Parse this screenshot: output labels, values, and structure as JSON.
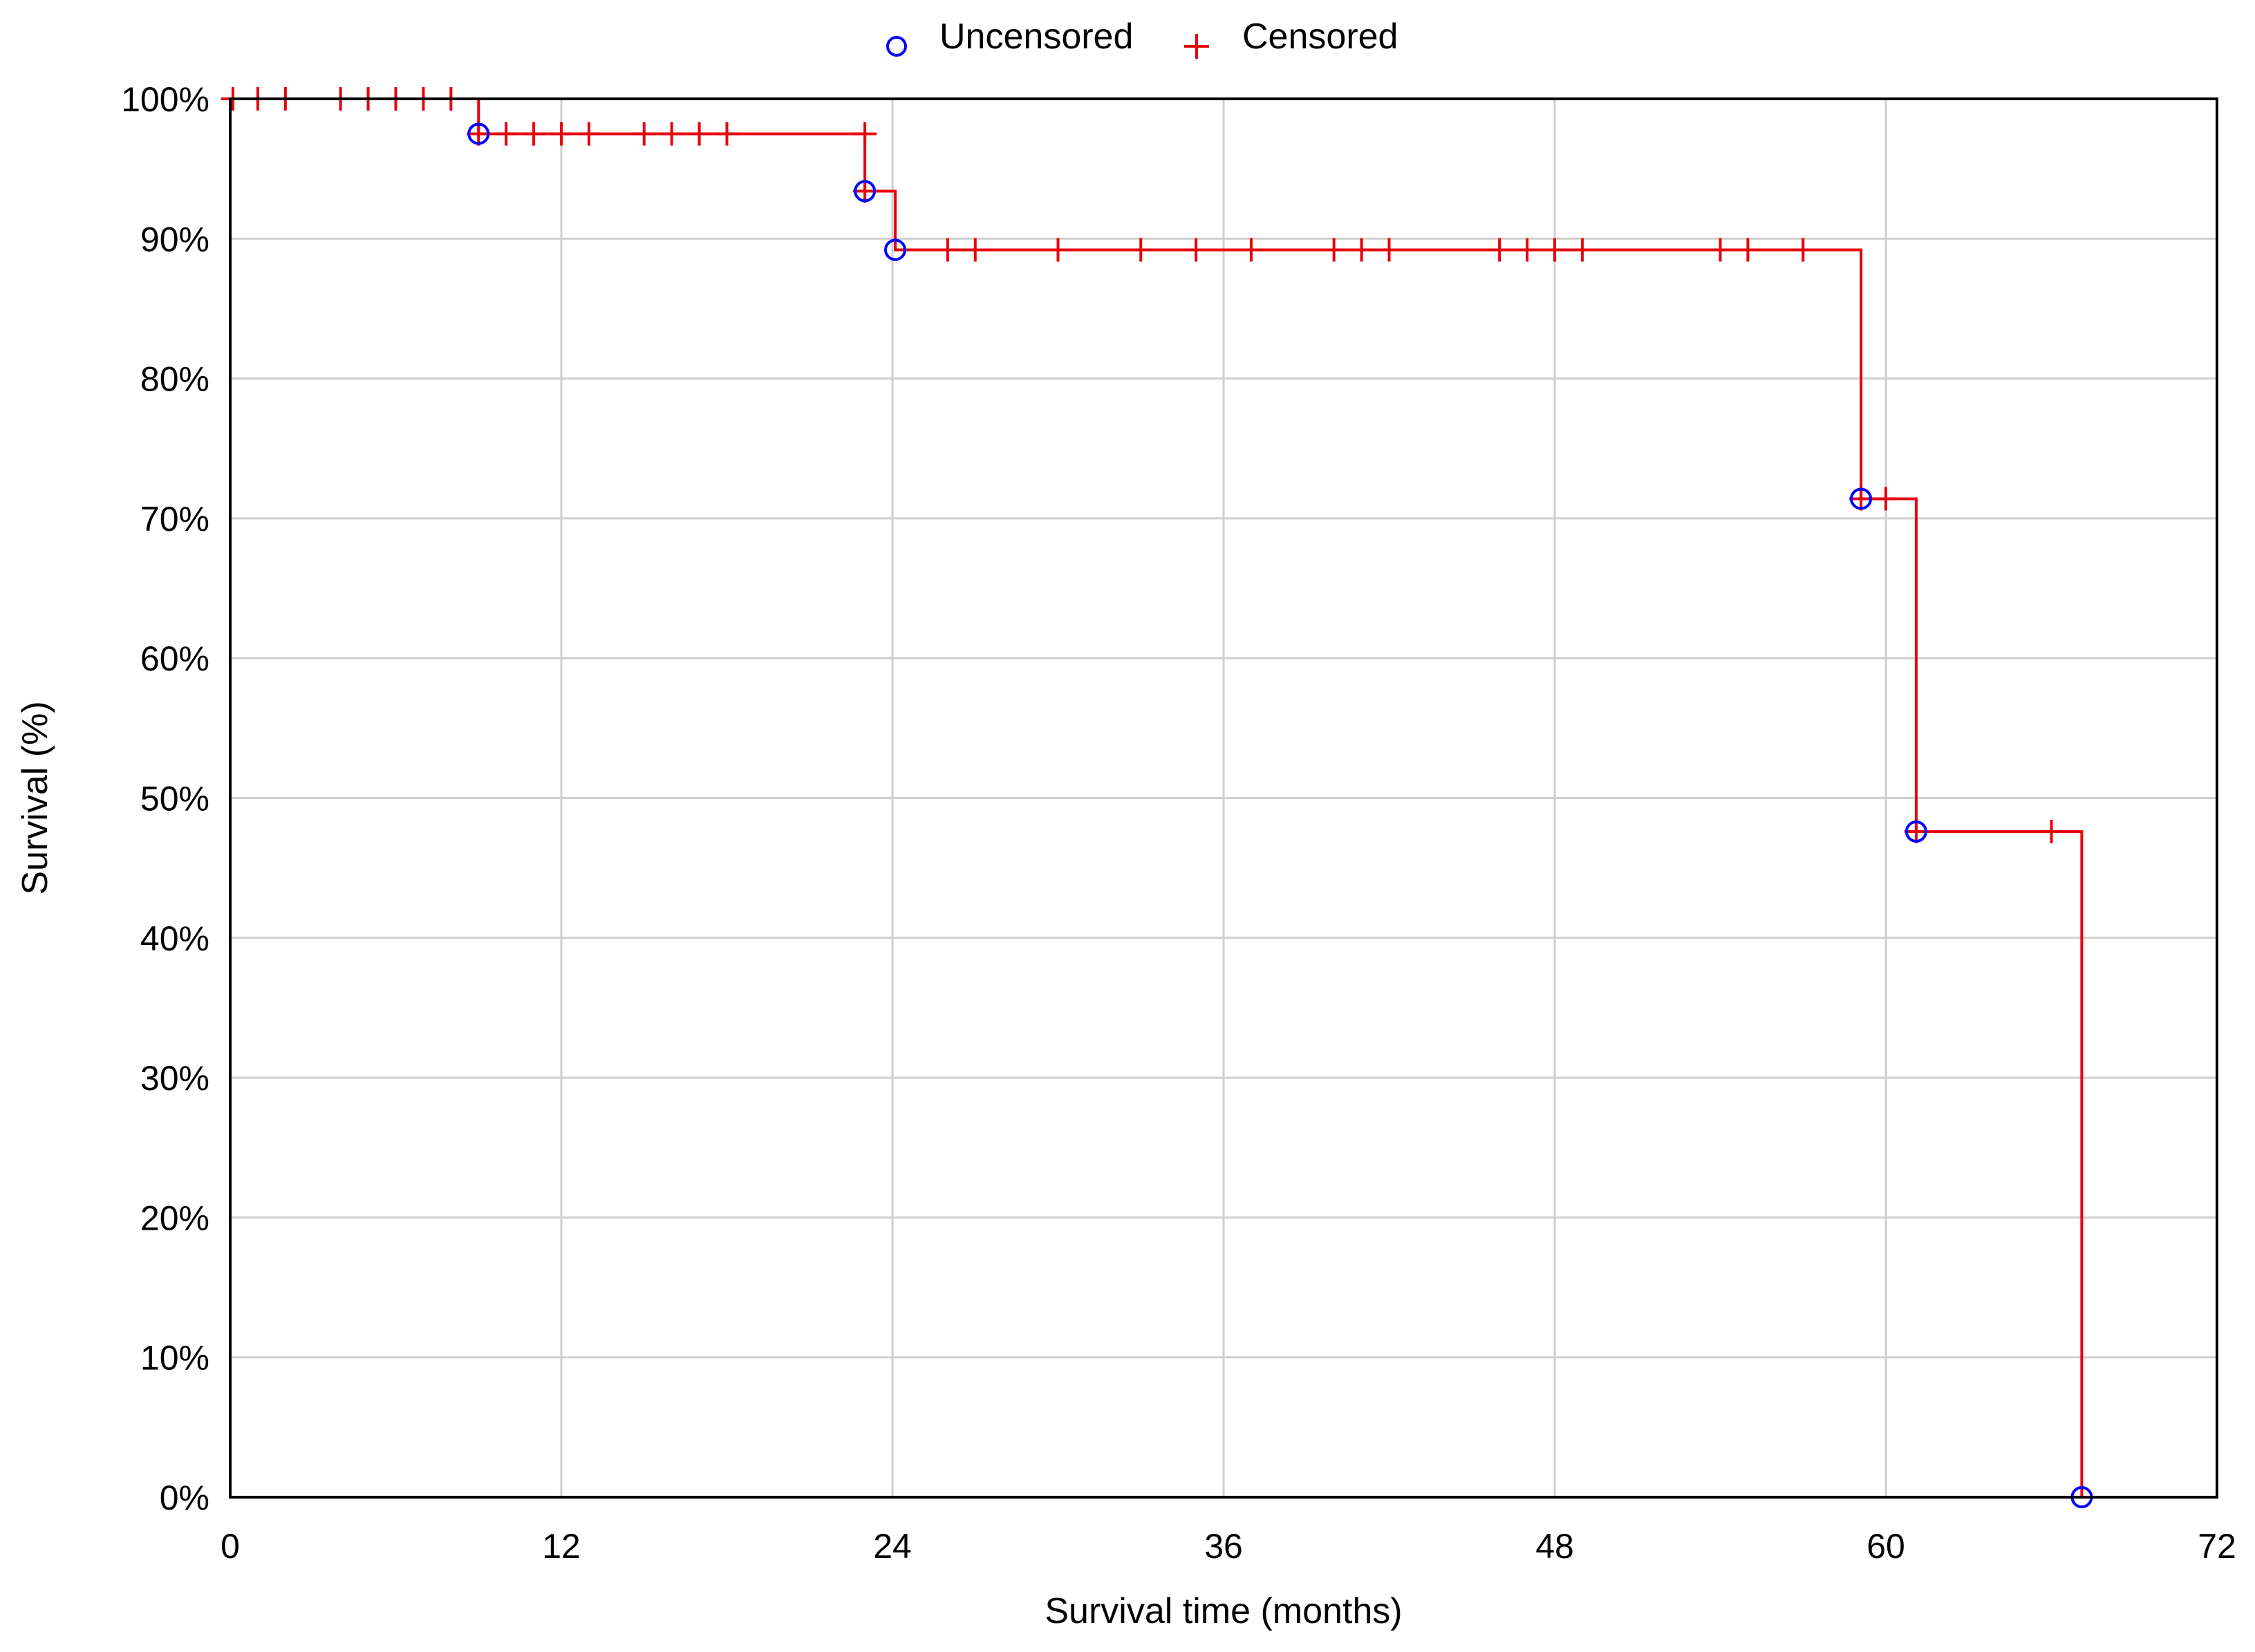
{
  "chart_data": {
    "type": "line",
    "subtype": "kaplan-meier-survival",
    "title": "",
    "xlabel": "Survival time (months)",
    "ylabel": "Survival (%)",
    "xlim": [
      0,
      72
    ],
    "ylim": [
      0,
      100
    ],
    "xticks": [
      0,
      12,
      24,
      36,
      48,
      60,
      72
    ],
    "xtick_labels": [
      "0",
      "12",
      "24",
      "36",
      "48",
      "60",
      "72"
    ],
    "yticks": [
      0,
      10,
      20,
      30,
      40,
      50,
      60,
      70,
      80,
      90,
      100
    ],
    "ytick_labels": [
      "0%",
      "10%",
      "20%",
      "30%",
      "40%",
      "50%",
      "60%",
      "70%",
      "80%",
      "90%",
      "100%"
    ],
    "grid": true,
    "legend_position": "top-center",
    "colors": {
      "line": "#e8000b",
      "uncensored": "#0000ff",
      "censored": "#e8000b",
      "grid": "#cfcfcf"
    },
    "legend": [
      {
        "label": "Uncensored",
        "marker": "circle"
      },
      {
        "label": "Censored",
        "marker": "plus"
      }
    ],
    "survival_curve": [
      {
        "x": 0,
        "y": 100
      },
      {
        "x": 9,
        "y": 100
      },
      {
        "x": 9,
        "y": 97.5
      },
      {
        "x": 23,
        "y": 97.5
      },
      {
        "x": 23,
        "y": 93.4
      },
      {
        "x": 24.1,
        "y": 93.4
      },
      {
        "x": 24.1,
        "y": 89.2
      },
      {
        "x": 59.1,
        "y": 89.2
      },
      {
        "x": 59.1,
        "y": 71.4
      },
      {
        "x": 61.1,
        "y": 71.4
      },
      {
        "x": 61.1,
        "y": 47.6
      },
      {
        "x": 67.1,
        "y": 47.6
      },
      {
        "x": 67.1,
        "y": 0
      }
    ],
    "uncensored": [
      {
        "x": 9,
        "y": 97.5
      },
      {
        "x": 23,
        "y": 93.4
      },
      {
        "x": 24.1,
        "y": 89.2
      },
      {
        "x": 59.1,
        "y": 71.4
      },
      {
        "x": 61.1,
        "y": 47.6
      },
      {
        "x": 67.1,
        "y": 0
      }
    ],
    "censored": [
      {
        "x": 0.1,
        "y": 100
      },
      {
        "x": 1,
        "y": 100
      },
      {
        "x": 2,
        "y": 100
      },
      {
        "x": 4,
        "y": 100
      },
      {
        "x": 5,
        "y": 100
      },
      {
        "x": 6,
        "y": 100
      },
      {
        "x": 7,
        "y": 100
      },
      {
        "x": 8,
        "y": 100
      },
      {
        "x": 9,
        "y": 97.5
      },
      {
        "x": 10,
        "y": 97.5
      },
      {
        "x": 11,
        "y": 97.5
      },
      {
        "x": 12,
        "y": 97.5
      },
      {
        "x": 13,
        "y": 97.5
      },
      {
        "x": 15,
        "y": 97.5
      },
      {
        "x": 16,
        "y": 97.5
      },
      {
        "x": 17,
        "y": 97.5
      },
      {
        "x": 18,
        "y": 97.5
      },
      {
        "x": 23,
        "y": 97.5
      },
      {
        "x": 23,
        "y": 93.4
      },
      {
        "x": 26,
        "y": 89.2
      },
      {
        "x": 27,
        "y": 89.2
      },
      {
        "x": 30,
        "y": 89.2
      },
      {
        "x": 33,
        "y": 89.2
      },
      {
        "x": 35,
        "y": 89.2
      },
      {
        "x": 37,
        "y": 89.2
      },
      {
        "x": 40,
        "y": 89.2
      },
      {
        "x": 41,
        "y": 89.2
      },
      {
        "x": 42,
        "y": 89.2
      },
      {
        "x": 46,
        "y": 89.2
      },
      {
        "x": 47,
        "y": 89.2
      },
      {
        "x": 48,
        "y": 89.2
      },
      {
        "x": 49,
        "y": 89.2
      },
      {
        "x": 54,
        "y": 89.2
      },
      {
        "x": 55,
        "y": 89.2
      },
      {
        "x": 57,
        "y": 89.2
      },
      {
        "x": 59.1,
        "y": 71.4
      },
      {
        "x": 60,
        "y": 71.4
      },
      {
        "x": 61.1,
        "y": 47.6
      },
      {
        "x": 66,
        "y": 47.6
      }
    ]
  }
}
